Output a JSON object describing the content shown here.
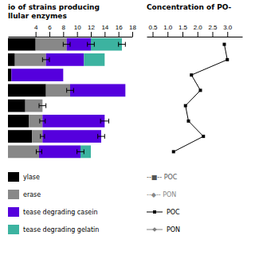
{
  "chart_data": [
    {
      "type": "bar",
      "orientation": "horizontal",
      "stacked": true,
      "title": "io of strains producing\nllular enzymes",
      "categories": [
        null,
        null,
        null,
        null,
        null,
        null,
        null,
        null
      ],
      "series": [
        {
          "name": "ylase",
          "color": "#000000",
          "values": [
            4.0,
            1.0,
            0.5,
            5.5,
            2.5,
            3.0,
            3.5,
            0.0
          ]
        },
        {
          "name": "erase",
          "color": "#888888",
          "values": [
            4.5,
            4.5,
            0.0,
            3.5,
            2.5,
            2.0,
            1.5,
            4.5
          ],
          "errors": [
            0.5,
            0.5,
            0.0,
            0.5,
            0.5,
            0.4,
            0.3,
            0.4
          ]
        },
        {
          "name": "tease degrading casein",
          "color": "#5500dd",
          "values": [
            3.5,
            5.5,
            7.5,
            8.0,
            0.0,
            9.0,
            8.5,
            6.0
          ],
          "errors": [
            0.5,
            0.0,
            0.0,
            0.0,
            0.0,
            0.6,
            0.5,
            0.5
          ]
        },
        {
          "name": "tease degrading gelatin",
          "color": "#3cb3a0",
          "values": [
            4.5,
            3.0,
            0.0,
            0.0,
            0.0,
            0.0,
            0.0,
            1.5
          ],
          "errors": [
            0.5,
            0.0,
            0.0,
            0.0,
            0.0,
            0.0,
            0.0,
            0.0
          ]
        }
      ],
      "xlim": [
        0,
        18
      ],
      "xticks": [
        4,
        6,
        8,
        10,
        12,
        14,
        16,
        18
      ],
      "grid": false,
      "tick_labels": "x",
      "legend": "bottom"
    },
    {
      "type": "line",
      "orientation": "horizontal",
      "title": "Concentration of PO-",
      "categories": [
        null,
        null,
        null,
        null,
        null,
        null,
        null,
        null
      ],
      "series": [
        {
          "name": "POC",
          "color": "#000000",
          "marker": "square",
          "values": [
            2.9,
            3.0,
            1.8,
            2.1,
            1.6,
            1.7,
            2.2,
            1.2
          ]
        },
        {
          "name": "PON",
          "color": "#808080",
          "marker": "diamond",
          "values": [
            null,
            null,
            null,
            null,
            null,
            null,
            null,
            null
          ]
        }
      ],
      "xlim": [
        0.3,
        3.5
      ],
      "xticks": [
        0.5,
        {
          "value": 1.0,
          "label": "1.0"
        },
        1.5,
        {
          "value": 2.0,
          "label": "2.0"
        },
        2.5,
        {
          "value": 3.0,
          "label": "3.0"
        }
      ],
      "annotations": [
        "--■-- POC",
        "--◆-- PON"
      ],
      "grid": false,
      "tick_labels": "x",
      "legend": "bottom"
    }
  ]
}
